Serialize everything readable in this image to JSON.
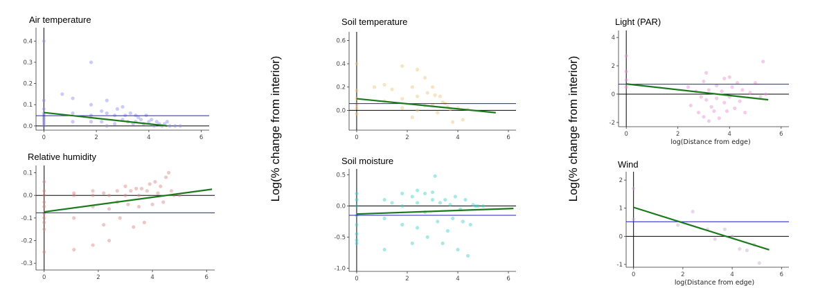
{
  "figure": {
    "y_axis_title": "Log(% change from interior)",
    "x_axis_title": "log(Distance from edge)"
  },
  "colors": {
    "regression": "#1a7a1a",
    "mean_line": "#1c1ccc",
    "zero_line": "#000000"
  },
  "chart_data": [
    {
      "type": "scatter",
      "title": "Air temperature",
      "point_color": "#8c8cf2",
      "xlim": [
        -0.3,
        6.3
      ],
      "ylim": [
        -0.02,
        0.45
      ],
      "xticks": [
        "0",
        "2",
        "4",
        "6"
      ],
      "yticks": [
        "0.0",
        "0.1",
        "0.2",
        "0.3",
        "0.4"
      ],
      "ytick_values": [
        0,
        0.1,
        0.2,
        0.3,
        0.4
      ],
      "xlabel": "",
      "zero": 0,
      "mean": 0.048,
      "regression": {
        "x": [
          0,
          4.7
        ],
        "y": [
          0.063,
          0.0
        ]
      },
      "x": [
        0,
        0,
        0,
        0,
        0,
        0,
        0,
        0,
        0,
        0,
        0.7,
        1.1,
        1.1,
        1.1,
        1.8,
        1.8,
        1.8,
        1.8,
        2.2,
        2.2,
        2.4,
        2.4,
        2.4,
        2.7,
        2.7,
        2.8,
        3.0,
        3.0,
        3.1,
        3.2,
        3.3,
        3.4,
        3.5,
        3.5,
        3.6,
        3.7,
        3.8,
        3.9,
        4.0,
        4.1,
        4.2,
        4.3,
        4.4,
        4.5,
        4.6,
        4.7,
        4.8,
        5.0,
        5.2
      ],
      "y": [
        0.4,
        0.12,
        0.08,
        0.06,
        0.05,
        0.04,
        0.03,
        0.02,
        0.01,
        0.0,
        0.15,
        0.13,
        0.06,
        0.02,
        0.3,
        0.1,
        0.05,
        0.02,
        0.07,
        0.02,
        0.12,
        0.06,
        0.0,
        0.05,
        0.01,
        0.08,
        0.09,
        0.03,
        0.05,
        0.02,
        0.06,
        0.01,
        0.05,
        0.02,
        0.04,
        0.03,
        0.01,
        0.05,
        0.02,
        0.03,
        0.0,
        0.02,
        0.01,
        0.0,
        0.01,
        0.02,
        0.0,
        0.0,
        0.0
      ]
    },
    {
      "type": "scatter",
      "title": "Relative humidity",
      "point_color": "#d98282",
      "xlim": [
        -0.3,
        6.3
      ],
      "ylim": [
        -0.33,
        0.12
      ],
      "xticks": [
        "0",
        "2",
        "4",
        "6"
      ],
      "yticks": [
        "-0.3",
        "-0.2",
        "-0.1",
        "0.0",
        "0.1"
      ],
      "ytick_values": [
        -0.3,
        -0.2,
        -0.1,
        0,
        0.1
      ],
      "xlabel": "",
      "zero": 0,
      "mean": -0.077,
      "regression": {
        "x": [
          0,
          6.2
        ],
        "y": [
          -0.073,
          0.027
        ]
      },
      "x": [
        0,
        0,
        0,
        0,
        0,
        0,
        0,
        0,
        0,
        0,
        1.1,
        1.1,
        1.1,
        1.1,
        1.8,
        1.8,
        1.8,
        1.8,
        2.2,
        2.2,
        2.4,
        2.4,
        2.4,
        2.7,
        2.7,
        2.8,
        3.0,
        3.0,
        3.1,
        3.2,
        3.3,
        3.4,
        3.5,
        3.5,
        3.6,
        3.7,
        3.8,
        3.9,
        4.0,
        4.1,
        4.2,
        4.3,
        4.4,
        4.5,
        4.6,
        4.7,
        4.8,
        5.0
      ],
      "y": [
        -0.25,
        -0.15,
        -0.1,
        -0.08,
        -0.05,
        -0.03,
        0.0,
        0.02,
        0.06,
        -0.12,
        -0.24,
        -0.1,
        0.0,
        0.01,
        -0.22,
        -0.05,
        0.0,
        0.02,
        -0.13,
        0.01,
        -0.2,
        -0.06,
        0.0,
        -0.03,
        0.02,
        -0.1,
        0.0,
        0.04,
        -0.04,
        0.02,
        -0.14,
        0.03,
        -0.05,
        0.0,
        0.03,
        -0.12,
        0.02,
        0.05,
        -0.04,
        0.06,
        0.01,
        0.04,
        -0.03,
        0.08,
        0.1,
        0.02,
        0.0,
        0.0
      ]
    },
    {
      "type": "scatter",
      "title": "Soil temperature",
      "point_color": "#f2c27a",
      "xlim": [
        -0.3,
        6.3
      ],
      "ylim": [
        -0.17,
        0.65
      ],
      "xticks": [
        "0",
        "2",
        "4",
        "6"
      ],
      "yticks": [
        "0.0",
        "0.2",
        "0.4",
        "0.6"
      ],
      "ytick_values": [
        0,
        0.2,
        0.4,
        0.6
      ],
      "xlabel": "",
      "zero": 0,
      "mean": 0.058,
      "regression": {
        "x": [
          0,
          5.5
        ],
        "y": [
          0.1,
          -0.02
        ]
      },
      "x": [
        0,
        0,
        0,
        0,
        0,
        0,
        0.7,
        1.1,
        1.1,
        1.4,
        1.8,
        1.8,
        1.8,
        2.2,
        2.2,
        2.4,
        2.4,
        2.4,
        2.7,
        2.7,
        2.8,
        3.0,
        3.0,
        3.1,
        3.2,
        3.3,
        3.4,
        3.5,
        3.6,
        3.7,
        3.8,
        4.0,
        4.2,
        4.4
      ],
      "y": [
        0.4,
        0.17,
        0.1,
        0.05,
        0.02,
        -0.03,
        0.2,
        0.22,
        0.08,
        0.18,
        0.38,
        0.1,
        0.02,
        0.2,
        -0.06,
        0.35,
        0.12,
        0.0,
        0.28,
        0.04,
        0.15,
        0.2,
        0.05,
        0.13,
        -0.02,
        0.12,
        0.07,
        0.06,
        0.03,
        0.01,
        -0.1,
        0.02,
        -0.08,
        0.01
      ]
    },
    {
      "type": "scatter",
      "title": "Soil moisture",
      "point_color": "#3dcdcd",
      "xlim": [
        -0.3,
        6.3
      ],
      "ylim": [
        -1.05,
        0.55
      ],
      "xticks": [
        "0",
        "2",
        "4",
        "6"
      ],
      "yticks": [
        "-1.0",
        "-0.5",
        "0.0",
        "0.5"
      ],
      "ytick_values": [
        -1.0,
        -0.5,
        0,
        0.5
      ],
      "xlabel": "",
      "zero": 0,
      "mean": -0.15,
      "regression": {
        "x": [
          0,
          6.2
        ],
        "y": [
          -0.13,
          -0.04
        ]
      },
      "x": [
        0,
        0,
        0,
        0,
        0,
        0,
        0,
        0,
        1.1,
        1.1,
        1.1,
        1.4,
        1.8,
        1.8,
        1.8,
        2.2,
        2.2,
        2.4,
        2.4,
        2.4,
        2.7,
        2.7,
        2.8,
        3.0,
        3.0,
        3.1,
        3.2,
        3.3,
        3.4,
        3.5,
        3.6,
        3.7,
        3.8,
        3.9,
        4.0,
        4.1,
        4.2,
        4.3,
        4.4,
        4.5,
        4.6,
        4.7,
        4.8,
        5.0
      ],
      "y": [
        -0.55,
        -0.3,
        -0.15,
        0.0,
        0.1,
        0.2,
        -0.6,
        -0.45,
        -0.7,
        -0.2,
        0.1,
        0.05,
        -0.3,
        0.0,
        0.2,
        -0.6,
        0.15,
        -0.35,
        0.05,
        0.25,
        -0.1,
        0.2,
        -0.5,
        0.1,
        0.22,
        0.48,
        -0.25,
        0.05,
        -0.6,
        0.1,
        -0.4,
        0.02,
        -0.2,
        0.15,
        -0.7,
        -0.05,
        -0.25,
        0.1,
        -0.8,
        -0.3,
        0.02,
        0.0,
        0.0,
        0.0
      ]
    },
    {
      "type": "scatter",
      "title": "Light (PAR)",
      "point_color": "#e88cd0",
      "xlim": [
        -0.3,
        6.3
      ],
      "ylim": [
        -2.3,
        4.3
      ],
      "xticks": [
        "0",
        "2",
        "4",
        "6"
      ],
      "yticks": [
        "-2",
        "0",
        "2",
        "4"
      ],
      "ytick_values": [
        -2,
        0,
        2,
        4
      ],
      "xlabel": "log(Distance from edge)",
      "zero": 0,
      "mean": 0.7,
      "regression": {
        "x": [
          0,
          5.5
        ],
        "y": [
          0.72,
          -0.4
        ]
      },
      "x": [
        0,
        0,
        0,
        0,
        2.4,
        2.5,
        2.7,
        2.8,
        2.9,
        3.0,
        3.0,
        3.1,
        3.1,
        3.2,
        3.2,
        3.3,
        3.4,
        3.5,
        3.5,
        3.6,
        3.7,
        3.8,
        3.8,
        3.9,
        4.0,
        4.0,
        4.1,
        4.2,
        4.3,
        4.4,
        4.5,
        4.6,
        4.8,
        5.0,
        5.2,
        5.3,
        5.4
      ],
      "y": [
        2.7,
        1.6,
        1.0,
        0.5,
        0.5,
        -0.8,
        0.2,
        -1.3,
        -0.2,
        -1.6,
        0.9,
        -0.4,
        1.5,
        -1.9,
        0.3,
        -0.9,
        -1.2,
        0.6,
        -0.3,
        -1.7,
        0.2,
        -0.6,
        1.1,
        -1.2,
        1.2,
        -0.2,
        0.5,
        -1.0,
        0.8,
        -0.5,
        0.3,
        -1.3,
        0.1,
        0.8,
        -0.2,
        2.3,
        0.0
      ]
    },
    {
      "type": "scatter",
      "title": "Wind",
      "point_color": "#c8a8c8",
      "xlim": [
        -0.3,
        6.3
      ],
      "ylim": [
        -1.1,
        2.2
      ],
      "xticks": [
        "0",
        "2",
        "4",
        "6"
      ],
      "yticks": [
        "-1",
        "0",
        "1",
        "2"
      ],
      "ytick_values": [
        -1,
        0,
        1,
        2
      ],
      "xlabel": "log(Distance from edge)",
      "zero": 0,
      "mean": 0.52,
      "regression": {
        "x": [
          0,
          5.5
        ],
        "y": [
          1.03,
          -0.48
        ]
      },
      "x": [
        0,
        0,
        1.8,
        2.4,
        3.0,
        3.3,
        3.7,
        4.0,
        4.3,
        4.6,
        4.9,
        5.1
      ],
      "y": [
        1.7,
        0.6,
        0.4,
        0.88,
        0.25,
        -0.1,
        0.25,
        0.0,
        -0.45,
        -0.5,
        -0.3,
        -0.95
      ]
    }
  ]
}
